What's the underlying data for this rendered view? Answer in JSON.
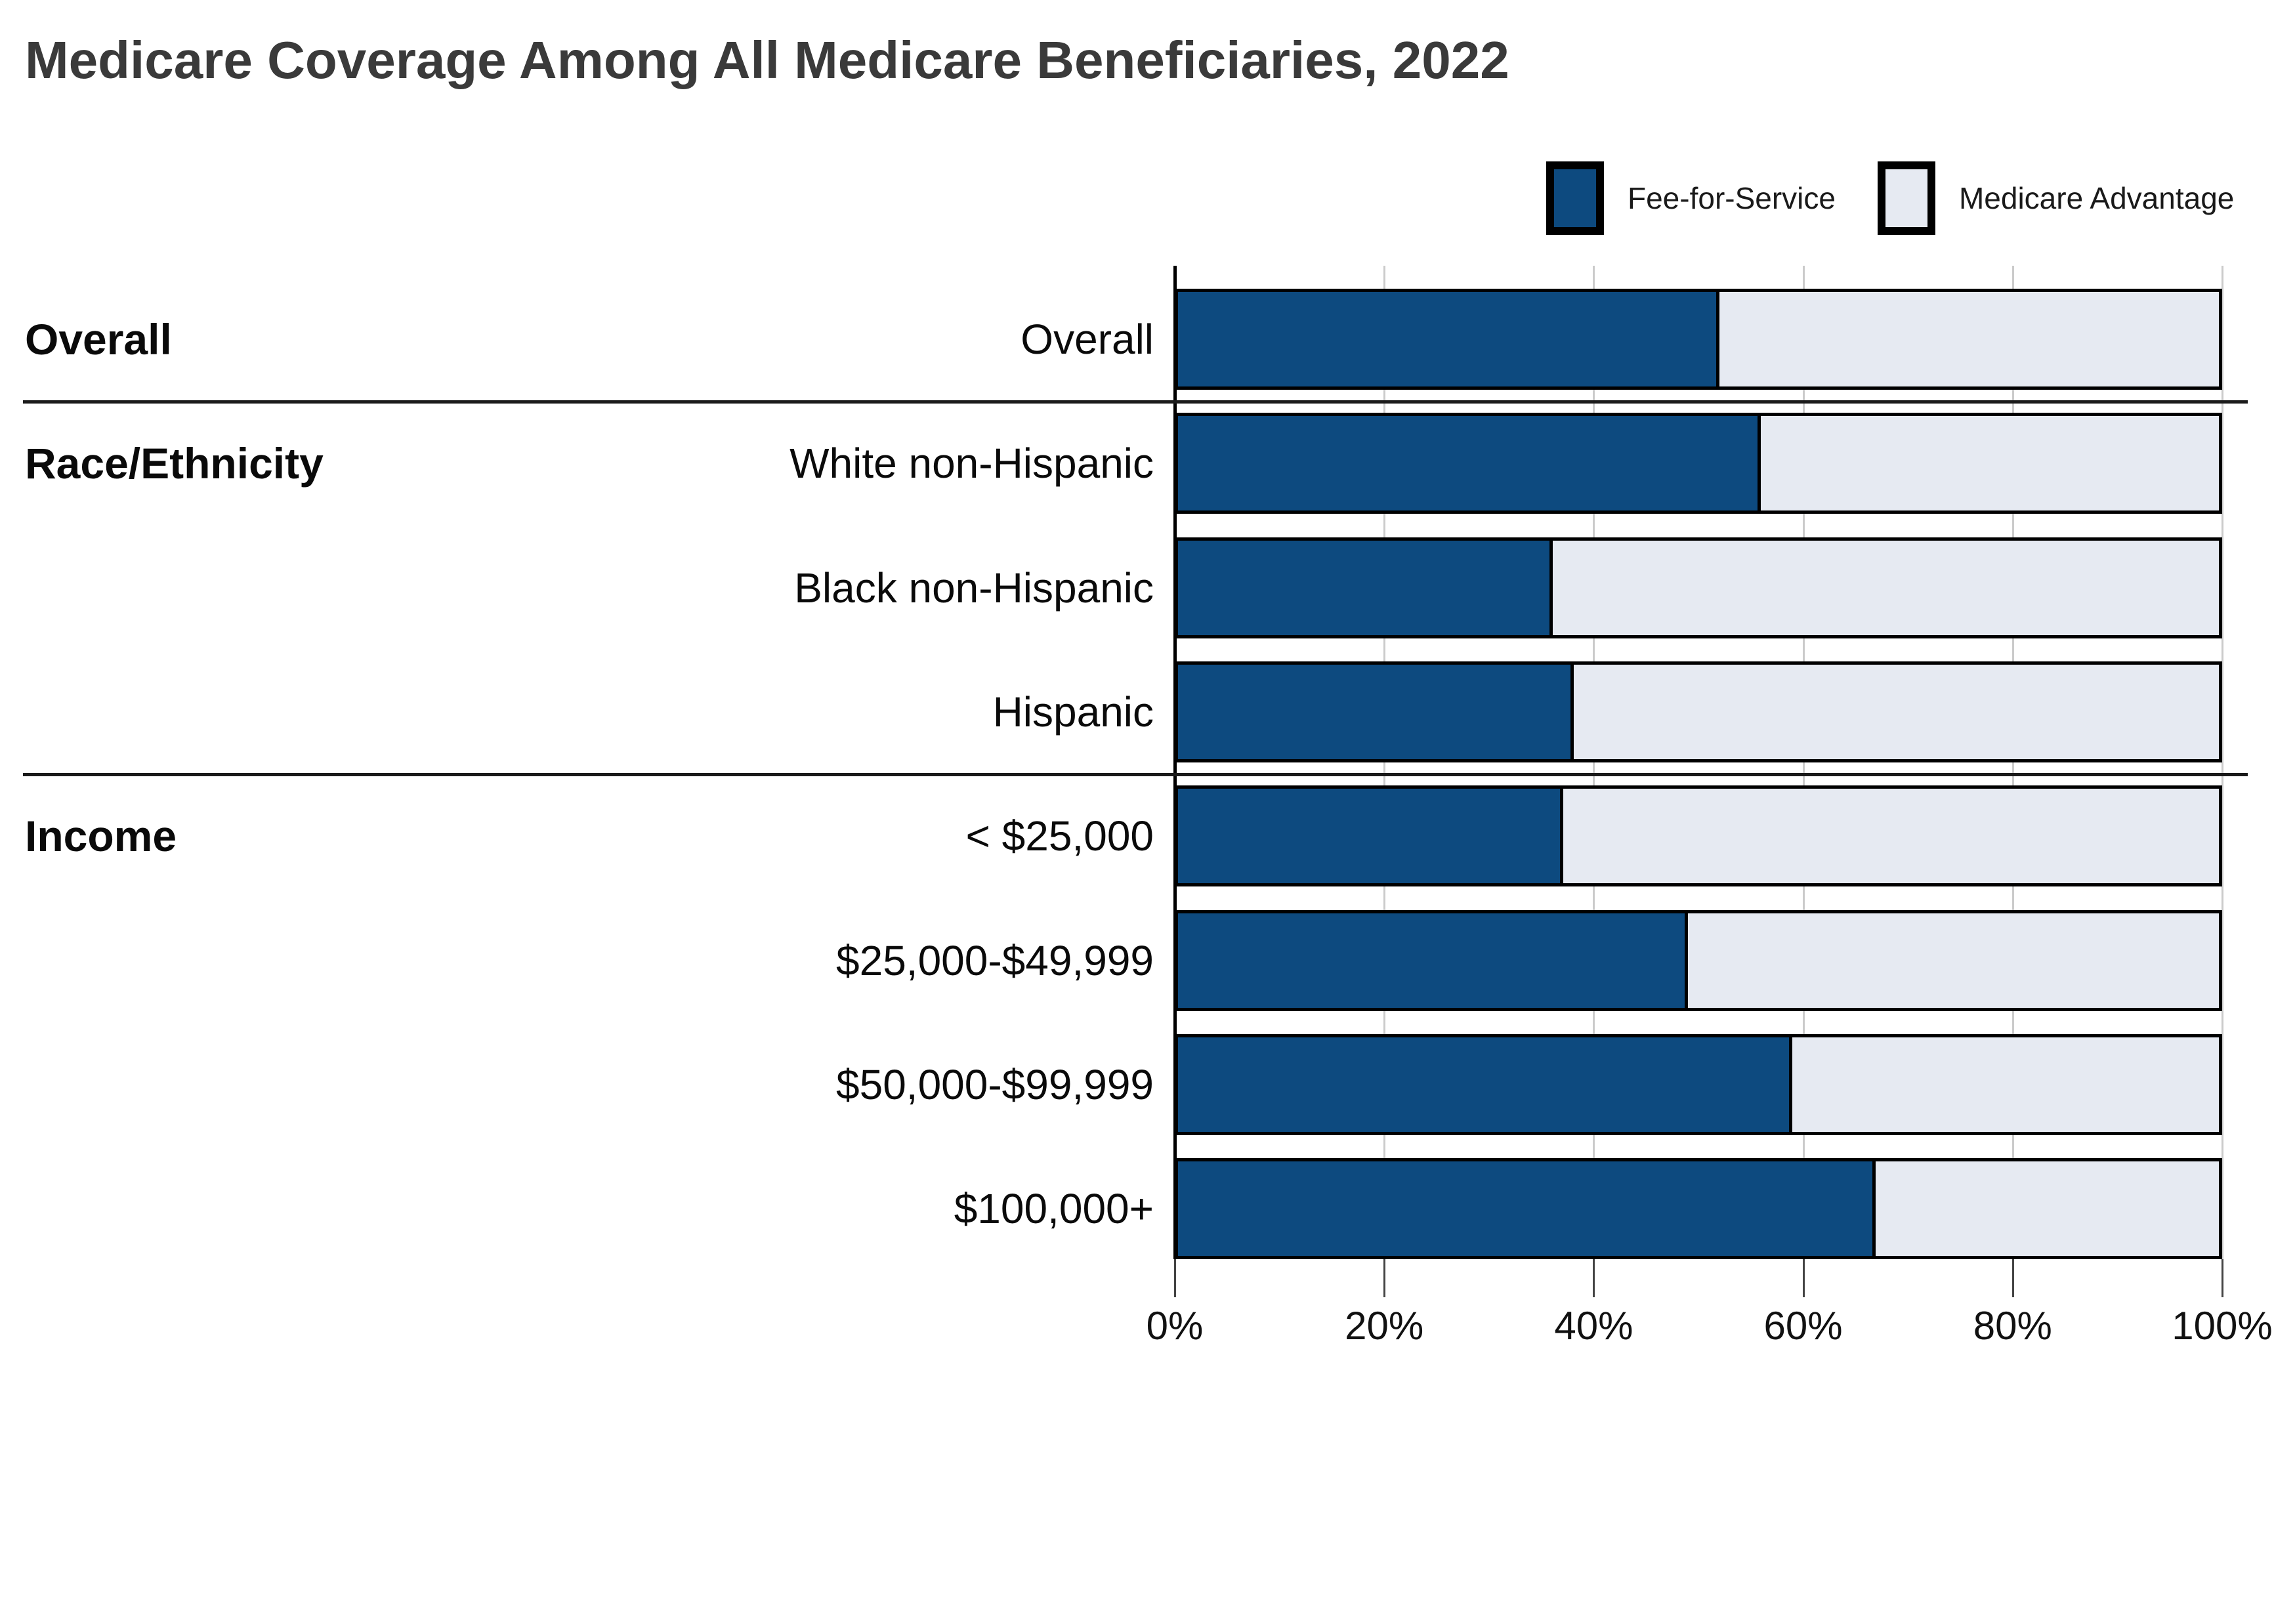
{
  "title": "Medicare Coverage Among All Medicare Beneficiaries, 2022",
  "colors": {
    "fee_for_service": "#0d4a7f",
    "medicare_advantage": "#e6eaf2",
    "bar_border": "#000000",
    "gridline": "#cbcbcb",
    "axis": "#000000",
    "separator": "#1a1a1a",
    "title_text": "#3a3a3a",
    "label_text": "#0a0a0a"
  },
  "legend": {
    "items": [
      {
        "label": "Fee-for-Service",
        "color": "#0d4a7f"
      },
      {
        "label": "Medicare Advantage",
        "color": "#e6eaf2"
      }
    ]
  },
  "chart_data": {
    "type": "bar",
    "orientation": "horizontal",
    "stacked": true,
    "title": "Medicare Coverage Among All Medicare Beneficiaries, 2022",
    "xlabel": "",
    "ylabel": "",
    "xlim": [
      0,
      100
    ],
    "x_tick_labels": [
      "0%",
      "20%",
      "40%",
      "60%",
      "80%",
      "100%"
    ],
    "grid": true,
    "legend_position": "top-right",
    "categories": [
      "Overall",
      "White non-Hispanic",
      "Black non-Hispanic",
      "Hispanic",
      "< $25,000",
      "$25,000-$49,999",
      "$50,000-$99,999",
      "$100,000+"
    ],
    "series": [
      {
        "name": "Fee-for-Service",
        "values": [
          52,
          56,
          36,
          38,
          37,
          49,
          59,
          67
        ]
      },
      {
        "name": "Medicare Advantage",
        "values": [
          48,
          44,
          64,
          62,
          63,
          51,
          41,
          33
        ]
      }
    ],
    "groups": [
      {
        "label": "Overall",
        "rows": [
          {
            "label": "Overall",
            "fee_for_service": 52,
            "medicare_advantage": 48
          }
        ]
      },
      {
        "label": "Race/Ethnicity",
        "rows": [
          {
            "label": "White non-Hispanic",
            "fee_for_service": 56,
            "medicare_advantage": 44
          },
          {
            "label": "Black non-Hispanic",
            "fee_for_service": 36,
            "medicare_advantage": 64
          },
          {
            "label": "Hispanic",
            "fee_for_service": 38,
            "medicare_advantage": 62
          }
        ]
      },
      {
        "label": "Income",
        "rows": [
          {
            "label": "< $25,000",
            "fee_for_service": 37,
            "medicare_advantage": 63
          },
          {
            "label": "$25,000-$49,999",
            "fee_for_service": 49,
            "medicare_advantage": 51
          },
          {
            "label": "$50,000-$99,999",
            "fee_for_service": 59,
            "medicare_advantage": 41
          },
          {
            "label": "$100,000+",
            "fee_for_service": 67,
            "medicare_advantage": 33
          }
        ]
      }
    ]
  }
}
